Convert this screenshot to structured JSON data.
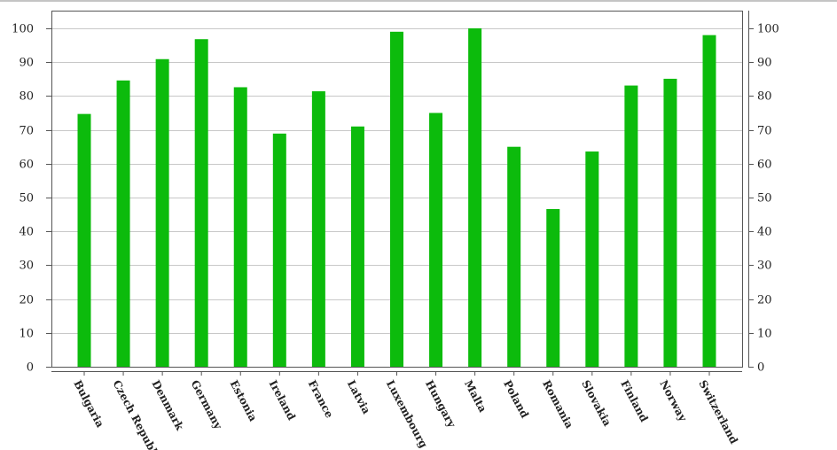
{
  "chart_data": {
    "type": "bar",
    "title": "",
    "xlabel": "",
    "ylabel": "",
    "ylim": [
      0,
      100
    ],
    "yticks": [
      0,
      10,
      20,
      30,
      40,
      50,
      60,
      70,
      80,
      90,
      100
    ],
    "grid": true,
    "legend": "none",
    "categories": [
      "Bulgaria",
      "Czech Republic",
      "Denmark",
      "Germany",
      "Estonia",
      "Ireland",
      "France",
      "Latvia",
      "Luxembourg",
      "Hungary",
      "Malta",
      "Poland",
      "Romania",
      "Slovakia",
      "Finland",
      "Norway",
      "Switzerland"
    ],
    "values": [
      74.7,
      84.6,
      90.9,
      96.8,
      82.6,
      68.9,
      81.4,
      71,
      99,
      75,
      100,
      65,
      46.6,
      63.6,
      83.1,
      85.1,
      98
    ]
  },
  "colors": {
    "bar": "#0cbb0c",
    "grid": "#c8c8c8",
    "axis": "#555555",
    "text": "#222222"
  }
}
